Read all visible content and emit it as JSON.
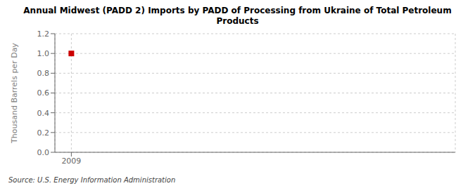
{
  "chart_data": {
    "type": "scatter",
    "title": "Annual Midwest (PADD 2) Imports by PADD of Processing from Ukraine of Total Petroleum\nProducts",
    "ylabel": "Thousand Barrels per Day",
    "annotations": [
      "Source: U.S. Energy Information Administration"
    ],
    "x": [
      2009
    ],
    "values": [
      1.0
    ],
    "color": "#cc0000",
    "marker": "square",
    "xlim": [
      2008.4,
      2023
    ],
    "ylim": [
      0.0,
      1.2
    ],
    "xticks": [
      2009
    ],
    "yticks": [
      {
        "value": 0.0,
        "label": "0.0"
      },
      0.2,
      0.4,
      0.6,
      0.8,
      {
        "value": 1.0,
        "label": "1.0"
      },
      1.2
    ],
    "grid": true
  }
}
